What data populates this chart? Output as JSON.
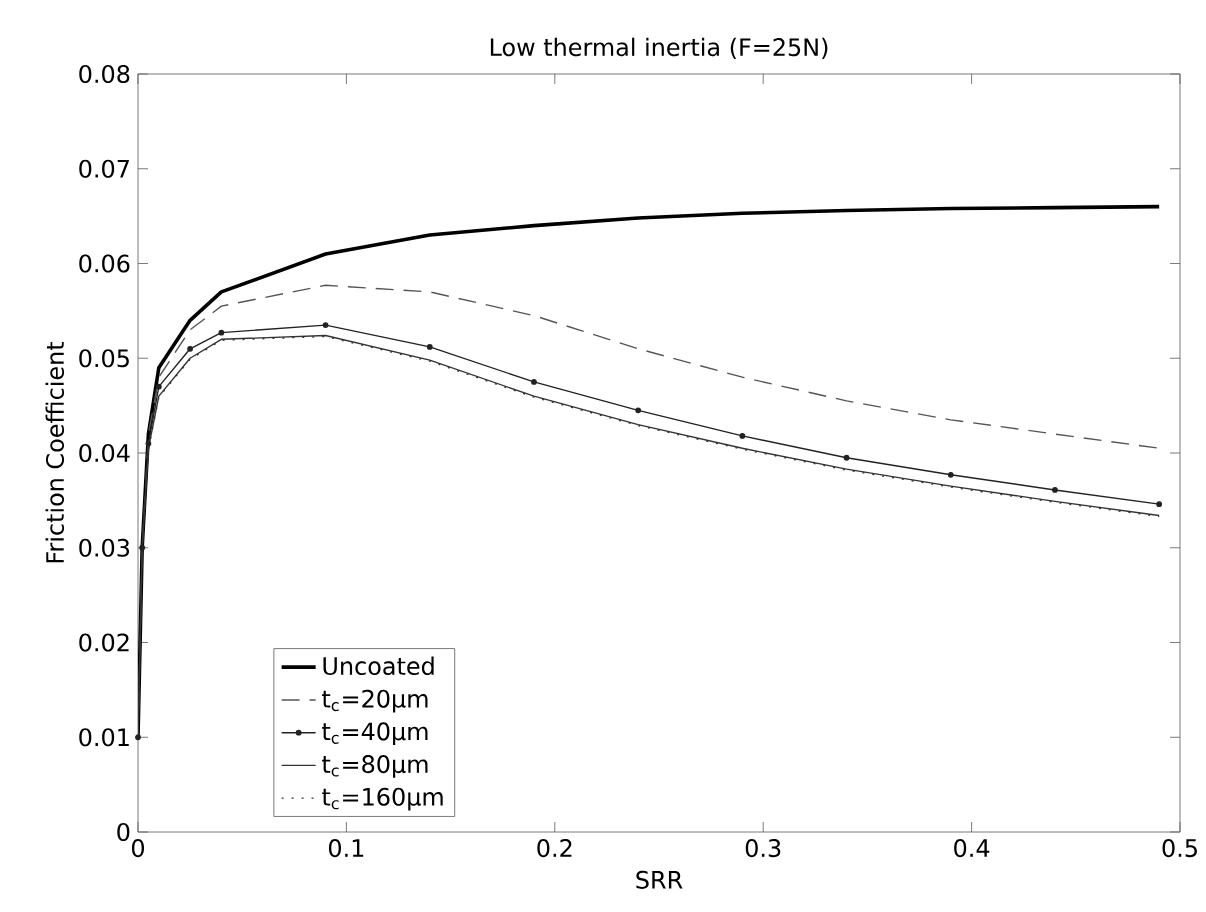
{
  "chart_data": {
    "type": "line",
    "title": "Low thermal inertia (F=25N)",
    "xlabel": "SRR",
    "ylabel": "Friction Coefficient",
    "x": [
      0,
      0.002,
      0.005,
      0.01,
      0.025,
      0.04,
      0.09,
      0.14,
      0.19,
      0.24,
      0.29,
      0.34,
      0.39,
      0.44,
      0.49
    ],
    "series": [
      {
        "name": "Uncoated",
        "color": "#000000",
        "line_style": "solid",
        "marker": "none",
        "values": [
          0.01,
          0.03,
          0.042,
          0.049,
          0.054,
          0.057,
          0.061,
          0.063,
          0.064,
          0.0648,
          0.0653,
          0.0656,
          0.0658,
          0.0659,
          0.066
        ]
      },
      {
        "name": "t$_{c}$=20µm",
        "color": "#555555",
        "line_style": "dashed",
        "marker": "none",
        "values": [
          0.01,
          0.03,
          0.042,
          0.048,
          0.053,
          0.0555,
          0.0577,
          0.057,
          0.0545,
          0.051,
          0.048,
          0.0455,
          0.0435,
          0.042,
          0.0405
        ]
      },
      {
        "name": "t$_{c}$=40µm",
        "color": "#222222",
        "line_style": "solid",
        "marker": "circle",
        "values": [
          0.01,
          0.03,
          0.041,
          0.047,
          0.051,
          0.0527,
          0.0535,
          0.0512,
          0.0475,
          0.0445,
          0.0418,
          0.0395,
          0.0377,
          0.0361,
          0.0346
        ]
      },
      {
        "name": "t$_{c}$=80µm",
        "color": "#333333",
        "line_style": "solid",
        "marker": "none",
        "values": [
          0.01,
          0.03,
          0.0405,
          0.046,
          0.05,
          0.052,
          0.0524,
          0.0498,
          0.046,
          0.043,
          0.0405,
          0.0383,
          0.0365,
          0.0349,
          0.0334
        ]
      },
      {
        "name": "t$_{c}$=160µm",
        "color": "#333333",
        "line_style": "dotted",
        "marker": "none",
        "values": [
          0.01,
          0.03,
          0.0404,
          0.0459,
          0.0499,
          0.0519,
          0.0523,
          0.0497,
          0.0459,
          0.0429,
          0.0404,
          0.0382,
          0.0364,
          0.0348,
          0.0333
        ]
      }
    ],
    "xlim": [
      0,
      0.5
    ],
    "xticks": [
      0,
      0.1,
      0.2,
      0.3,
      0.4,
      0.5
    ],
    "ylim": [
      0,
      0.08
    ],
    "yticks": [
      0,
      0.01,
      0.02,
      0.03,
      0.04,
      0.05,
      0.06,
      0.07,
      0.08
    ],
    "grid": false,
    "legend": "bottom left"
  }
}
